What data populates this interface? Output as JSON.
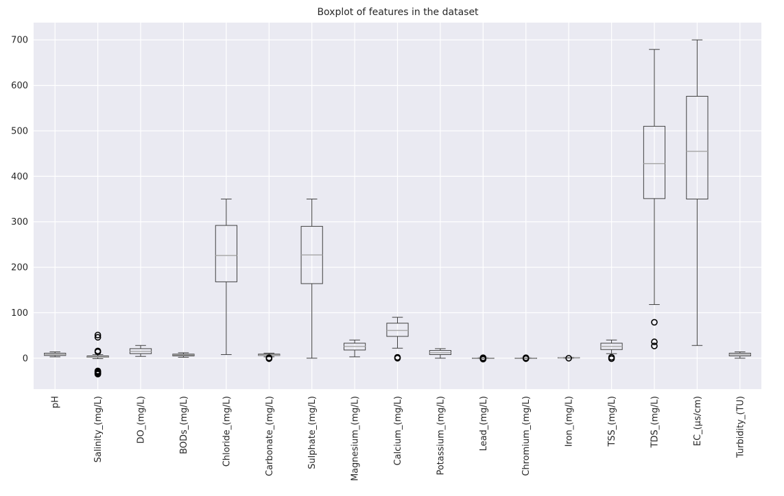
{
  "chart_data": {
    "type": "boxplot",
    "title": "Boxplot of features in the dataset",
    "xlabel": "",
    "ylabel": "",
    "ylim": [
      -68,
      738
    ],
    "yticks": [
      0,
      100,
      200,
      300,
      400,
      500,
      600,
      700
    ],
    "grid": true,
    "categories": [
      "pH",
      "Salinity_(mg/L)",
      "DO_(mg/L)",
      "BODs_(mg/L)",
      "Chloride_(mg/L)",
      "Carbonate_(mg/L)",
      "Sulphate_(mg/L)",
      "Magnesium_(mg/L)",
      "Calcium_(mg/L)",
      "Potassium_(mg/L)",
      "Lead_(mg/L)",
      "Chromium_(mg/L)",
      "Iron_(mg/L)",
      "TSS_(mg/L)",
      "TDS_(mg/L)",
      "EC_(µs/cm)",
      "Turbidity_(TU)"
    ],
    "boxes": [
      {
        "whislo": 3,
        "q1": 6,
        "med": 8,
        "q3": 11,
        "whishi": 14,
        "fliers": []
      },
      {
        "whislo": -1,
        "q1": 2,
        "med": 3,
        "q3": 5,
        "whishi": 8,
        "fliers": [
          51,
          46,
          16,
          14,
          -28,
          -30,
          -32,
          -34,
          -35
        ]
      },
      {
        "whislo": 4,
        "q1": 10,
        "med": 15,
        "q3": 21,
        "whishi": 28,
        "fliers": []
      },
      {
        "whislo": 2,
        "q1": 5,
        "med": 7,
        "q3": 9,
        "whishi": 12,
        "fliers": []
      },
      {
        "whislo": 8,
        "q1": 168,
        "med": 226,
        "q3": 292,
        "whishi": 350,
        "fliers": []
      },
      {
        "whislo": 3,
        "q1": 6,
        "med": 7,
        "q3": 9,
        "whishi": 11,
        "fliers": [
          1,
          -1
        ]
      },
      {
        "whislo": 0,
        "q1": 164,
        "med": 227,
        "q3": 290,
        "whishi": 350,
        "fliers": []
      },
      {
        "whislo": 3,
        "q1": 18,
        "med": 26,
        "q3": 33,
        "whishi": 40,
        "fliers": []
      },
      {
        "whislo": 22,
        "q1": 48,
        "med": 61,
        "q3": 77,
        "whishi": 90,
        "fliers": [
          2,
          0
        ]
      },
      {
        "whislo": 0,
        "q1": 8,
        "med": 12,
        "q3": 17,
        "whishi": 21,
        "fliers": []
      },
      {
        "whislo": -1,
        "q1": -0.5,
        "med": 0,
        "q3": 0.5,
        "whishi": 1,
        "fliers": [
          1,
          -1,
          -2
        ]
      },
      {
        "whislo": -1,
        "q1": -0.5,
        "med": 0,
        "q3": 0.5,
        "whishi": 1,
        "fliers": [
          1,
          -1
        ]
      },
      {
        "whislo": 0,
        "q1": 0.5,
        "med": 1,
        "q3": 1.5,
        "whishi": 2,
        "fliers": [
          0
        ]
      },
      {
        "whislo": 10,
        "q1": 19,
        "med": 26,
        "q3": 33,
        "whishi": 40,
        "fliers": [
          2,
          -1
        ]
      },
      {
        "whislo": 118,
        "q1": 351,
        "med": 428,
        "q3": 510,
        "whishi": 679,
        "fliers": [
          79,
          36,
          27
        ]
      },
      {
        "whislo": 28,
        "q1": 350,
        "med": 455,
        "q3": 576,
        "whishi": 700,
        "fliers": []
      },
      {
        "whislo": 0,
        "q1": 5,
        "med": 8,
        "q3": 11,
        "whishi": 14,
        "fliers": []
      }
    ],
    "colors": {
      "background": "#eaeaf2",
      "grid": "#ffffff",
      "box": "#3f3f3f",
      "median": "#aaaaaa",
      "flier": "#000000"
    }
  }
}
